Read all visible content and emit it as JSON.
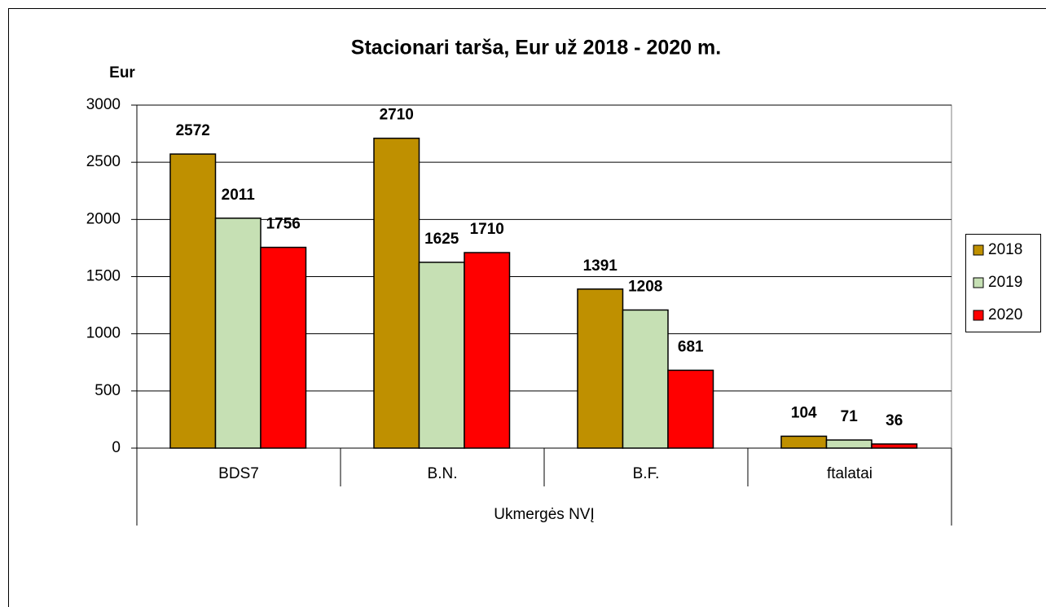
{
  "chart_data": {
    "type": "bar",
    "title": "Stacionari tarša, Eur už 2018 - 2020 m.",
    "y_label": "Eur",
    "group_label": "Ukmergės NVĮ",
    "categories": [
      "BDS7",
      "B.N.",
      "B.F.",
      "ftalatai"
    ],
    "series": [
      {
        "name": "2018",
        "color": "#bf9000",
        "values": [
          2572,
          2710,
          1391,
          104
        ]
      },
      {
        "name": "2019",
        "color": "#c6e0b4",
        "values": [
          2011,
          1625,
          1208,
          71
        ]
      },
      {
        "name": "2020",
        "color": "#ff0000",
        "values": [
          1756,
          1710,
          681,
          36
        ]
      }
    ],
    "ylim": [
      0,
      3000
    ],
    "yticks": [
      0,
      500,
      1000,
      1500,
      2000,
      2500,
      3000
    ],
    "grid": true,
    "legend": "right"
  }
}
